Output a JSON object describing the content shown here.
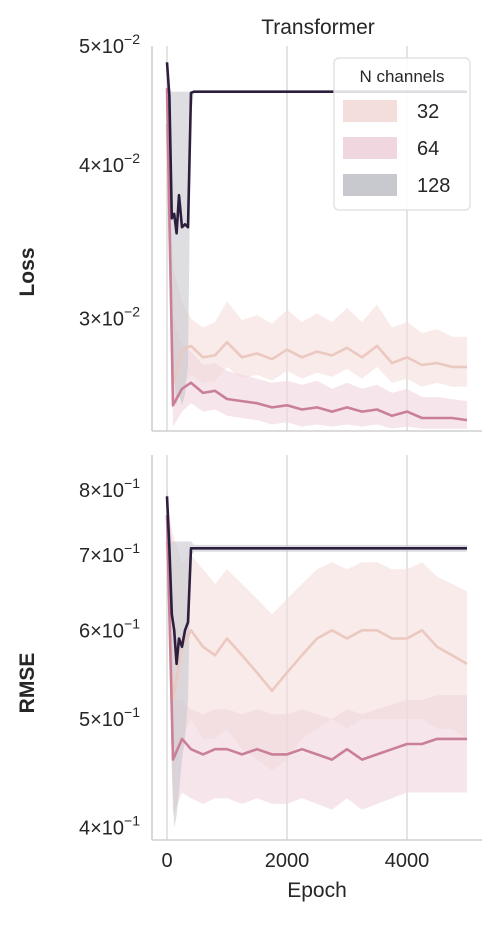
{
  "figure": {
    "title": "Transformer"
  },
  "chart_data": [
    {
      "type": "line",
      "title": "Transformer",
      "xlabel": "",
      "ylabel": "Loss",
      "yscale": "log",
      "xlim": [
        -250,
        5250
      ],
      "ylim": [
        0.0243,
        0.05
      ],
      "xticks": [],
      "yticks": [
        {
          "value": 0.05,
          "base": "5",
          "exp": "−2"
        },
        {
          "value": 0.04,
          "base": "4",
          "exp": "−2"
        },
        {
          "value": 0.03,
          "base": "3",
          "exp": "−2"
        }
      ],
      "grid": "vertical",
      "legend": {
        "placement": "top-right",
        "title": "N channels",
        "entries": [
          "32",
          "64",
          "128"
        ]
      },
      "series": [
        {
          "name": "32",
          "color": "#ebc9c0",
          "band_color": "#f3dedb",
          "x": [
            0,
            100,
            250,
            400,
            600,
            800,
            1000,
            1250,
            1500,
            1750,
            2000,
            2250,
            2500,
            2750,
            3000,
            3250,
            3500,
            3750,
            4000,
            4250,
            4500,
            4750,
            5000
          ],
          "y": [
            0.0432,
            0.0265,
            0.0283,
            0.0285,
            0.0279,
            0.028,
            0.0287,
            0.0279,
            0.0281,
            0.0278,
            0.0283,
            0.0279,
            0.0282,
            0.028,
            0.0284,
            0.0279,
            0.0285,
            0.0276,
            0.0279,
            0.0275,
            0.0276,
            0.0274,
            0.0274
          ],
          "band_low": [
            0.041,
            0.0255,
            0.0265,
            0.027,
            0.0266,
            0.0267,
            0.0274,
            0.0268,
            0.027,
            0.0267,
            0.0272,
            0.0268,
            0.0271,
            0.0269,
            0.0273,
            0.0268,
            0.0274,
            0.0266,
            0.0268,
            0.0264,
            0.0266,
            0.0264,
            0.0264
          ],
          "band_high": [
            0.045,
            0.033,
            0.031,
            0.03,
            0.0295,
            0.0298,
            0.031,
            0.0299,
            0.0302,
            0.0297,
            0.0305,
            0.0298,
            0.0303,
            0.0298,
            0.0306,
            0.0298,
            0.0308,
            0.0295,
            0.0298,
            0.0292,
            0.0294,
            0.029,
            0.029
          ]
        },
        {
          "name": "64",
          "color": "#c97f98",
          "band_color": "#f0d6de",
          "x": [
            0,
            100,
            250,
            400,
            600,
            800,
            1000,
            1250,
            1500,
            1750,
            2000,
            2250,
            2500,
            2750,
            3000,
            3250,
            3500,
            3750,
            4000,
            4250,
            4500,
            4750,
            5000
          ],
          "y": [
            0.0462,
            0.0255,
            0.0263,
            0.0266,
            0.0261,
            0.0262,
            0.0258,
            0.0257,
            0.0256,
            0.0254,
            0.0255,
            0.0253,
            0.0254,
            0.0252,
            0.0254,
            0.0252,
            0.0253,
            0.025,
            0.0252,
            0.0249,
            0.0249,
            0.0249,
            0.0248
          ],
          "band_low": [
            0.044,
            0.0245,
            0.0252,
            0.0256,
            0.0252,
            0.0253,
            0.025,
            0.0249,
            0.0248,
            0.0246,
            0.0247,
            0.0245,
            0.0246,
            0.0245,
            0.0246,
            0.0245,
            0.0246,
            0.0244,
            0.0245,
            0.0244,
            0.0244,
            0.0244,
            0.0244
          ],
          "band_high": [
            0.0475,
            0.03,
            0.0285,
            0.0282,
            0.0275,
            0.0276,
            0.0272,
            0.027,
            0.0268,
            0.0266,
            0.0267,
            0.0265,
            0.0267,
            0.0263,
            0.0266,
            0.0263,
            0.0265,
            0.0261,
            0.0263,
            0.0259,
            0.0259,
            0.0258,
            0.0257
          ]
        },
        {
          "name": "128",
          "color": "#2d1e3e",
          "band_color": "#c8c8cf",
          "x": [
            0,
            40,
            80,
            120,
            160,
            200,
            250,
            300,
            350,
            400,
            450,
            600,
            1000,
            2000,
            3000,
            4000,
            5000
          ],
          "y": [
            0.0485,
            0.0455,
            0.0362,
            0.0365,
            0.0352,
            0.0378,
            0.0356,
            0.0358,
            0.0356,
            0.0458,
            0.0459,
            0.0459,
            0.0459,
            0.0459,
            0.0459,
            0.0459,
            0.0459
          ],
          "band_low": [
            0.046,
            0.041,
            0.0265,
            0.027,
            0.0255,
            0.026,
            0.0255,
            0.026,
            0.0275,
            0.044,
            0.0459,
            0.0459,
            0.0459,
            0.0459,
            0.0459,
            0.0459,
            0.0459
          ],
          "band_high": [
            0.049,
            0.0462,
            0.0459,
            0.0459,
            0.0459,
            0.0459,
            0.0459,
            0.0459,
            0.0459,
            0.0459,
            0.0459,
            0.0459,
            0.0459,
            0.0459,
            0.0459,
            0.0459,
            0.0459
          ]
        }
      ]
    },
    {
      "type": "line",
      "title": "",
      "xlabel": "Epoch",
      "ylabel": "RMSE",
      "yscale": "log",
      "xlim": [
        -250,
        5250
      ],
      "ylim": [
        0.39,
        0.86
      ],
      "xticks": [
        "0",
        "2000",
        "4000"
      ],
      "xtick_values": [
        0,
        2000,
        4000
      ],
      "yticks": [
        {
          "value": 0.8,
          "base": "8",
          "exp": "−1"
        },
        {
          "value": 0.7,
          "base": "7",
          "exp": "−1"
        },
        {
          "value": 0.6,
          "base": "6",
          "exp": "−1"
        },
        {
          "value": 0.5,
          "base": "5",
          "exp": "−1"
        },
        {
          "value": 0.4,
          "base": "4",
          "exp": "−1"
        }
      ],
      "grid": "vertical",
      "series": [
        {
          "name": "32",
          "color": "#ebc9c0",
          "band_color": "#f3dedb",
          "x": [
            0,
            100,
            250,
            400,
            600,
            800,
            1000,
            1250,
            1500,
            1750,
            2000,
            2250,
            2500,
            2750,
            3000,
            3250,
            3500,
            3750,
            4000,
            4250,
            4500,
            4750,
            5000
          ],
          "y": [
            0.72,
            0.52,
            0.58,
            0.6,
            0.58,
            0.57,
            0.59,
            0.57,
            0.55,
            0.53,
            0.55,
            0.57,
            0.59,
            0.6,
            0.59,
            0.6,
            0.6,
            0.59,
            0.59,
            0.6,
            0.58,
            0.57,
            0.56
          ],
          "band_low": [
            0.68,
            0.44,
            0.48,
            0.5,
            0.48,
            0.48,
            0.49,
            0.47,
            0.46,
            0.45,
            0.46,
            0.48,
            0.49,
            0.5,
            0.49,
            0.5,
            0.5,
            0.5,
            0.5,
            0.5,
            0.49,
            0.49,
            0.48
          ],
          "band_high": [
            0.78,
            0.73,
            0.69,
            0.7,
            0.68,
            0.66,
            0.68,
            0.66,
            0.64,
            0.62,
            0.64,
            0.66,
            0.68,
            0.69,
            0.68,
            0.69,
            0.69,
            0.68,
            0.68,
            0.69,
            0.67,
            0.66,
            0.65
          ]
        },
        {
          "name": "64",
          "color": "#c97f98",
          "band_color": "#f0d6de",
          "x": [
            0,
            100,
            250,
            400,
            600,
            800,
            1000,
            1250,
            1500,
            1750,
            2000,
            2250,
            2500,
            2750,
            3000,
            3250,
            3500,
            3750,
            4000,
            4250,
            4500,
            4750,
            5000
          ],
          "y": [
            0.76,
            0.46,
            0.48,
            0.47,
            0.465,
            0.47,
            0.47,
            0.465,
            0.47,
            0.465,
            0.465,
            0.47,
            0.465,
            0.46,
            0.47,
            0.46,
            0.465,
            0.47,
            0.475,
            0.475,
            0.48,
            0.48,
            0.48
          ],
          "band_low": [
            0.72,
            0.41,
            0.43,
            0.425,
            0.42,
            0.425,
            0.425,
            0.42,
            0.425,
            0.42,
            0.42,
            0.425,
            0.42,
            0.415,
            0.425,
            0.415,
            0.42,
            0.425,
            0.43,
            0.43,
            0.43,
            0.43,
            0.43
          ],
          "band_high": [
            0.8,
            0.52,
            0.52,
            0.51,
            0.505,
            0.51,
            0.51,
            0.505,
            0.51,
            0.505,
            0.505,
            0.51,
            0.505,
            0.5,
            0.51,
            0.505,
            0.51,
            0.515,
            0.52,
            0.52,
            0.525,
            0.525,
            0.525
          ]
        },
        {
          "name": "128",
          "color": "#2d1e3e",
          "band_color": "#c8c8cf",
          "x": [
            0,
            40,
            80,
            120,
            160,
            200,
            250,
            300,
            350,
            400,
            450,
            600,
            1000,
            2000,
            3000,
            4000,
            5000
          ],
          "y": [
            0.79,
            0.71,
            0.62,
            0.6,
            0.56,
            0.59,
            0.58,
            0.6,
            0.61,
            0.71,
            0.71,
            0.71,
            0.71,
            0.71,
            0.71,
            0.71,
            0.71
          ],
          "band_low": [
            0.77,
            0.66,
            0.45,
            0.4,
            0.41,
            0.43,
            0.46,
            0.48,
            0.52,
            0.7,
            0.705,
            0.705,
            0.705,
            0.705,
            0.705,
            0.705,
            0.705
          ],
          "band_high": [
            0.81,
            0.76,
            0.72,
            0.72,
            0.72,
            0.72,
            0.72,
            0.72,
            0.72,
            0.72,
            0.715,
            0.715,
            0.715,
            0.715,
            0.715,
            0.715,
            0.715
          ]
        }
      ]
    }
  ]
}
